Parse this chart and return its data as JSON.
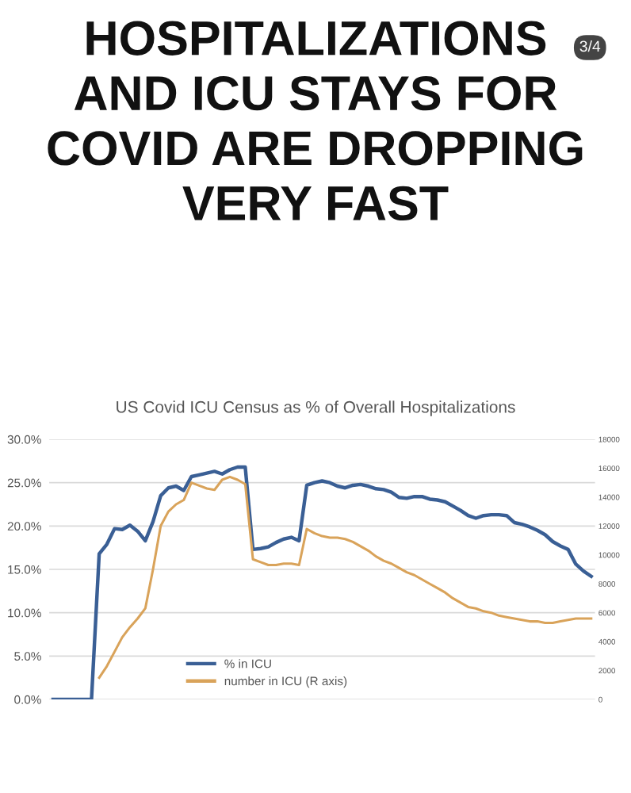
{
  "chart_data": {
    "type": "line",
    "title": "HOSPITALIZATIONS\nAND ICU STAYS FOR\nCOVID ARE DROPPING\nVERY FAST",
    "subtitle": "US Covid ICU Census as % of Overall Hospitalizations",
    "annotations": [
      "3/4"
    ],
    "categories": [
      null,
      null,
      null,
      null,
      null,
      null,
      null,
      null,
      null,
      null,
      null,
      null,
      null,
      null,
      null,
      null,
      null,
      null,
      null,
      null,
      null,
      null,
      null,
      null,
      null,
      null,
      null,
      null,
      null,
      null,
      null,
      null,
      null,
      null,
      null,
      null,
      null,
      null,
      null,
      null,
      null,
      null,
      null,
      null,
      null,
      null,
      null,
      null,
      null,
      null,
      null,
      null,
      null,
      null,
      null,
      null,
      null,
      null,
      null,
      null,
      null,
      null,
      null,
      null,
      null,
      null,
      null,
      null,
      null,
      null,
      null
    ],
    "series": [
      {
        "name": "% in ICU",
        "color": "#3a5f95",
        "values": [
          0,
          0,
          0,
          0,
          0,
          0,
          16.8,
          17.9,
          19.7,
          19.6,
          20.1,
          19.4,
          18.3,
          20.5,
          23.5,
          24.4,
          24.6,
          24.1,
          25.7,
          25.9,
          26.1,
          26.3,
          26.0,
          26.5,
          26.8,
          26.8,
          17.3,
          17.4,
          17.6,
          18.1,
          18.5,
          18.7,
          18.3,
          24.7,
          25.0,
          25.2,
          25.0,
          24.6,
          24.4,
          24.7,
          24.8,
          24.6,
          24.3,
          24.2,
          23.9,
          23.3,
          23.2,
          23.4,
          23.4,
          23.1,
          23.0,
          22.8,
          22.3,
          21.8,
          21.2,
          20.9,
          21.2,
          21.3,
          21.3,
          21.2,
          20.4,
          20.2,
          19.9,
          19.5,
          19.0,
          18.2,
          17.7,
          17.3,
          15.6,
          14.8,
          14.2
        ]
      },
      {
        "name": "number in ICU (R axis)",
        "color": "#d9a35a",
        "axis": "y2",
        "values": [
          null,
          null,
          null,
          null,
          null,
          null,
          1500,
          2300,
          3300,
          4300,
          5000,
          5600,
          6300,
          9000,
          12000,
          13000,
          13500,
          13800,
          15000,
          14800,
          14600,
          14500,
          15200,
          15400,
          15200,
          14900,
          9700,
          9500,
          9300,
          9300,
          9400,
          9400,
          9300,
          11800,
          11500,
          11300,
          11200,
          11200,
          11100,
          10900,
          10600,
          10300,
          9900,
          9600,
          9400,
          9100,
          8800,
          8600,
          8300,
          8000,
          7700,
          7400,
          7000,
          6700,
          6400,
          6300,
          6100,
          6000,
          5800,
          5700,
          5600,
          5500,
          5400,
          5400,
          5300,
          5300,
          5400,
          5500,
          5600,
          5600,
          5600
        ]
      }
    ],
    "ylim": [
      0,
      30
    ],
    "yticks": [
      {
        "value": 0,
        "label": "0.0%"
      },
      {
        "value": 5,
        "label": "5.0%"
      },
      {
        "value": 10,
        "label": "10.0%"
      },
      {
        "value": 15,
        "label": "15.0%"
      },
      {
        "value": 20,
        "label": "20.0%"
      },
      {
        "value": 25,
        "label": "25.0%"
      },
      {
        "value": 30,
        "label": "30.0%"
      }
    ],
    "y2lim": [
      0,
      18000
    ],
    "y2ticks": [
      0,
      2000,
      4000,
      6000,
      8000,
      10000,
      12000,
      14000,
      16000,
      18000
    ],
    "grid": "y",
    "legend": "bottom",
    "marker": "none",
    "line_style": "solid"
  }
}
